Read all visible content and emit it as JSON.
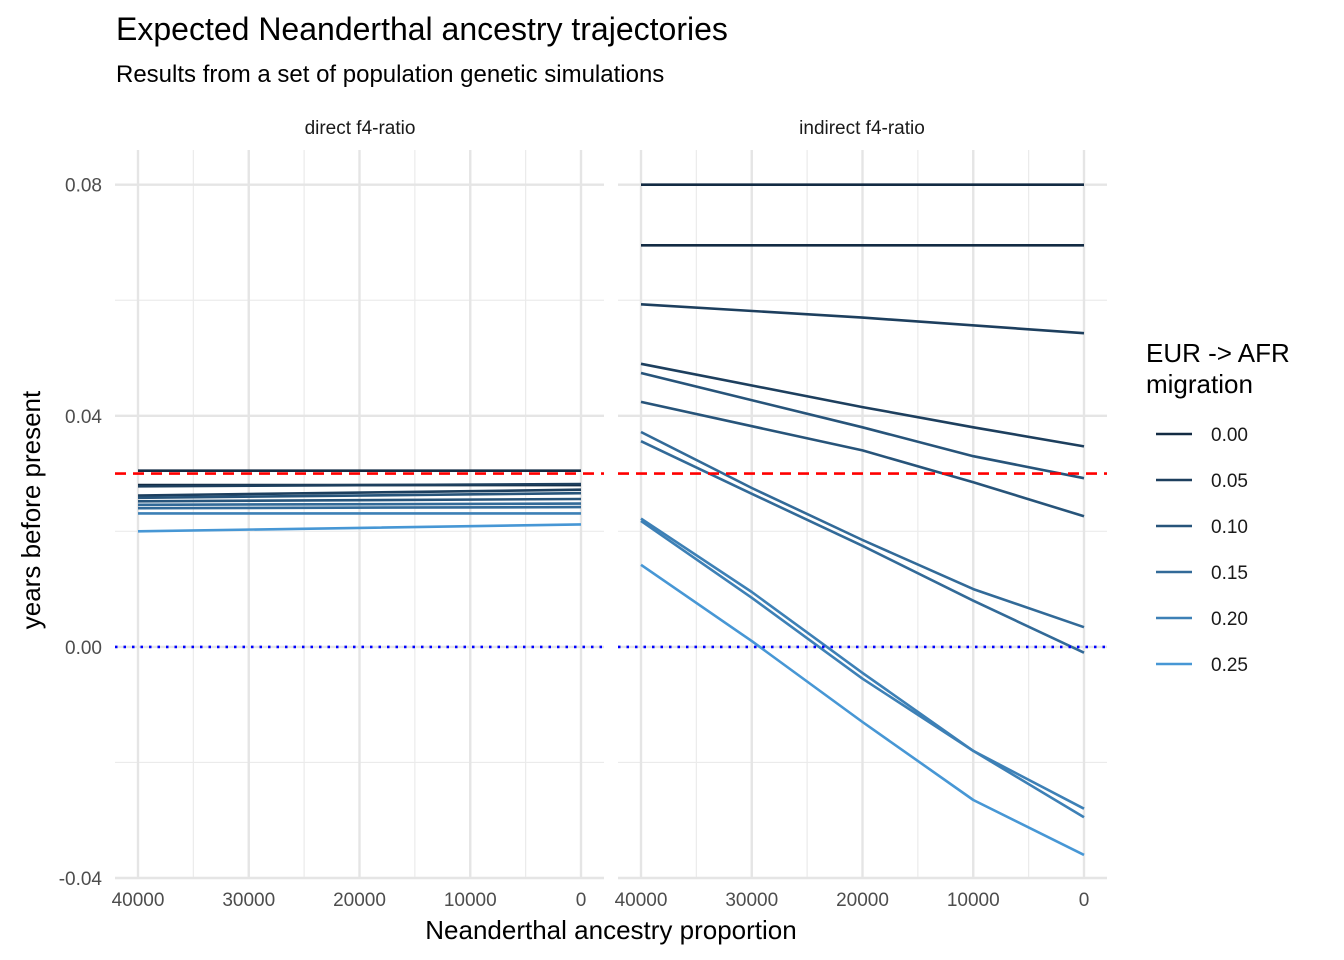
{
  "chart_data": {
    "type": "line",
    "title": "Expected Neanderthal ancestry trajectories",
    "subtitle": "Results from a set of population genetic simulations",
    "xlabel": "Neanderthal ancestry proportion",
    "ylabel": "years before present",
    "xlim": [
      40000,
      0
    ],
    "x_reversed": true,
    "ylim": [
      -0.04,
      0.086
    ],
    "x_ticks": [
      40000,
      30000,
      20000,
      10000,
      0
    ],
    "x_tick_labels": [
      "40000",
      "30000",
      "20000",
      "10000",
      "0"
    ],
    "y_ticks": [
      -0.04,
      0.0,
      0.04,
      0.08
    ],
    "y_tick_labels": [
      "-0.04",
      "0.00",
      "0.04",
      "0.08"
    ],
    "grid": true,
    "legend": {
      "title_line1": "EUR -> AFR",
      "title_line2": "migration",
      "placement": "right",
      "entries": [
        {
          "label": "0.00",
          "color": "#132b43"
        },
        {
          "label": "0.05",
          "color": "#1d3f5e"
        },
        {
          "label": "0.10",
          "color": "#27547a"
        },
        {
          "label": "0.15",
          "color": "#326a98"
        },
        {
          "label": "0.20",
          "color": "#3d80b6"
        },
        {
          "label": "0.25",
          "color": "#4797d5"
        }
      ]
    },
    "reference_lines": [
      {
        "y": 0.03,
        "color": "#ff0000",
        "style": "dashed"
      },
      {
        "y": 0.0,
        "color": "#0000ff",
        "style": "dotted"
      }
    ],
    "panels": [
      {
        "label": "direct f4-ratio",
        "series": [
          {
            "migration": "0.00",
            "color": "#132b43",
            "x": [
              40000,
              0
            ],
            "y": [
              0.0305,
              0.0305
            ]
          },
          {
            "migration": "0.00",
            "color": "#132b43",
            "x": [
              40000,
              0
            ],
            "y": [
              0.028,
              0.028
            ]
          },
          {
            "migration": "0.05",
            "color": "#1d3f5e",
            "x": [
              40000,
              0
            ],
            "y": [
              0.0278,
              0.0282
            ]
          },
          {
            "migration": "0.05",
            "color": "#1d3f5e",
            "x": [
              40000,
              0
            ],
            "y": [
              0.0262,
              0.0272
            ]
          },
          {
            "migration": "0.10",
            "color": "#27547a",
            "x": [
              40000,
              0
            ],
            "y": [
              0.0258,
              0.0266
            ]
          },
          {
            "migration": "0.10",
            "color": "#27547a",
            "x": [
              40000,
              0
            ],
            "y": [
              0.0252,
              0.0256
            ]
          },
          {
            "migration": "0.15",
            "color": "#326a98",
            "x": [
              40000,
              0
            ],
            "y": [
              0.0246,
              0.0248
            ]
          },
          {
            "migration": "0.15",
            "color": "#326a98",
            "x": [
              40000,
              0
            ],
            "y": [
              0.024,
              0.0242
            ]
          },
          {
            "migration": "0.20",
            "color": "#3d80b6",
            "x": [
              40000,
              0
            ],
            "y": [
              0.0231,
              0.0231
            ]
          },
          {
            "migration": "0.25",
            "color": "#4797d5",
            "x": [
              40000,
              20000,
              0
            ],
            "y": [
              0.02,
              0.0206,
              0.0212
            ]
          }
        ]
      },
      {
        "label": "indirect f4-ratio",
        "series": [
          {
            "migration": "0.00",
            "color": "#132b43",
            "x": [
              40000,
              0
            ],
            "y": [
              0.08,
              0.08
            ]
          },
          {
            "migration": "0.00",
            "color": "#132b43",
            "x": [
              40000,
              0
            ],
            "y": [
              0.0695,
              0.0695
            ]
          },
          {
            "migration": "0.05",
            "color": "#1d3f5e",
            "x": [
              40000,
              20000,
              0
            ],
            "y": [
              0.0593,
              0.057,
              0.0543
            ]
          },
          {
            "migration": "0.05",
            "color": "#1d3f5e",
            "x": [
              40000,
              20000,
              10000,
              0
            ],
            "y": [
              0.049,
              0.0415,
              0.038,
              0.0347
            ]
          },
          {
            "migration": "0.10",
            "color": "#27547a",
            "x": [
              40000,
              20000,
              10000,
              0
            ],
            "y": [
              0.0474,
              0.038,
              0.033,
              0.0292
            ]
          },
          {
            "migration": "0.10",
            "color": "#27547a",
            "x": [
              40000,
              20000,
              10000,
              0
            ],
            "y": [
              0.0424,
              0.034,
              0.0285,
              0.0226
            ]
          },
          {
            "migration": "0.15",
            "color": "#326a98",
            "x": [
              40000,
              30000,
              20000,
              10000,
              0
            ],
            "y": [
              0.0372,
              0.0275,
              0.0185,
              0.01,
              0.0034
            ]
          },
          {
            "migration": "0.15",
            "color": "#326a98",
            "x": [
              40000,
              30000,
              20000,
              10000,
              0
            ],
            "y": [
              0.0356,
              0.0265,
              0.0175,
              0.008,
              -0.001
            ]
          },
          {
            "migration": "0.20",
            "color": "#3d80b6",
            "x": [
              40000,
              30000,
              20000,
              10000,
              0
            ],
            "y": [
              0.0222,
              0.0095,
              -0.0045,
              -0.018,
              -0.0295
            ]
          },
          {
            "migration": "0.20",
            "color": "#3d80b6",
            "x": [
              40000,
              30000,
              20000,
              10000,
              0
            ],
            "y": [
              0.0218,
              0.0085,
              -0.0055,
              -0.018,
              -0.028
            ]
          },
          {
            "migration": "0.25",
            "color": "#4797d5",
            "x": [
              40000,
              30000,
              20000,
              10000,
              0
            ],
            "y": [
              0.0142,
              0.001,
              -0.013,
              -0.0265,
              -0.036
            ]
          }
        ]
      }
    ]
  }
}
